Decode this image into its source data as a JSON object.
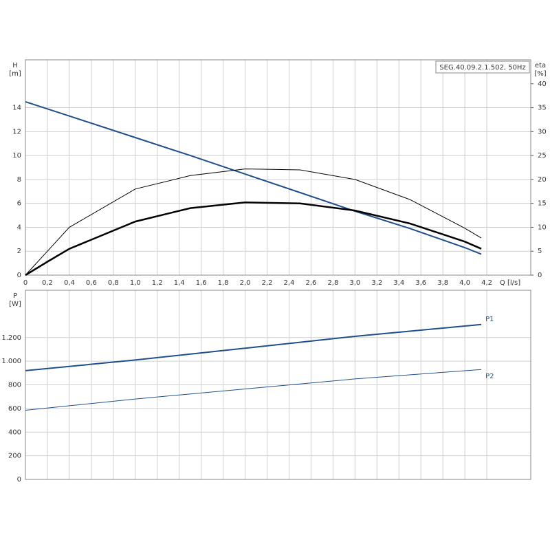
{
  "chart_data": [
    {
      "type": "line",
      "title": "SEG.40.09.2.1.502, 50Hz",
      "x_label": "Q [l/s]",
      "y_label": "H",
      "y_unit": "[m]",
      "y2_label": "eta",
      "y2_unit": "[%]",
      "x": [
        0,
        0.2,
        0.4,
        1.0,
        1.5,
        2.0,
        2.5,
        3.0,
        3.5,
        4.0,
        4.15
      ],
      "xlim": [
        0,
        4.6
      ],
      "xticks": [
        0,
        {
          "value": 0.2,
          "label": "0,2"
        },
        {
          "value": 0.4,
          "label": "0,4"
        },
        {
          "value": 0.6,
          "label": "0,6"
        },
        {
          "value": 0.8,
          "label": "0,8"
        },
        {
          "value": 1.0,
          "label": "1,0"
        },
        {
          "value": 1.2,
          "label": "1,2"
        },
        {
          "value": 1.4,
          "label": "1,4"
        },
        {
          "value": 1.6,
          "label": "1,6"
        },
        {
          "value": 1.8,
          "label": "1,8"
        },
        {
          "value": 2.0,
          "label": "2,0"
        },
        {
          "value": 2.2,
          "label": "2,2"
        },
        {
          "value": 2.4,
          "label": "2,4"
        },
        {
          "value": 2.6,
          "label": "2,6"
        },
        {
          "value": 2.8,
          "label": "2,8"
        },
        {
          "value": 3.0,
          "label": "3,0"
        },
        {
          "value": 3.2,
          "label": "3,2"
        },
        {
          "value": 3.4,
          "label": "3,4"
        },
        {
          "value": 3.6,
          "label": "3,6"
        },
        {
          "value": 3.8,
          "label": "3,8"
        },
        {
          "value": 4.0,
          "label": "4,0"
        },
        {
          "value": 4.2,
          "label": "4,2"
        }
      ],
      "ylim": [
        0,
        18
      ],
      "yticks": [
        0,
        2,
        4,
        6,
        8,
        10,
        12,
        14
      ],
      "y2lim": [
        0,
        45
      ],
      "y2ticks": [
        0,
        5,
        10,
        15,
        20,
        25,
        30,
        35,
        40
      ],
      "grid": true,
      "series": [
        {
          "color": "#1f4e8c",
          "width": 2,
          "values": [
            14.5,
            13.9,
            13.3,
            11.5,
            10.0,
            8.45,
            6.9,
            5.35,
            3.9,
            2.3,
            1.75
          ]
        },
        {
          "color": "#000000",
          "width": 1,
          "axis": "y2",
          "values": [
            0,
            5,
            10,
            18,
            20.8,
            22.2,
            22,
            20,
            15.8,
            9.8,
            7.75
          ]
        },
        {
          "color": "#000000",
          "width": 2.5,
          "axis": "y2",
          "values": [
            0,
            2.8,
            5.5,
            11.2,
            14,
            15.2,
            15,
            13.5,
            10.8,
            7,
            5.5
          ]
        }
      ]
    },
    {
      "type": "line",
      "y_label": "P",
      "y_unit": "[W]",
      "x": [
        0,
        1.0,
        2.0,
        3.0,
        4.15
      ],
      "xlim": [
        0,
        4.6
      ],
      "ylim": [
        0,
        1600
      ],
      "yticks": [
        0,
        200,
        400,
        600,
        800,
        {
          "value": 1000,
          "label": "1.000"
        },
        {
          "value": 1200,
          "label": "1.200"
        }
      ],
      "grid": true,
      "series": [
        {
          "name": "P1",
          "color": "#1f4e8c",
          "width": 2,
          "values": [
            920,
            1010,
            1110,
            1210,
            1310
          ]
        },
        {
          "name": "P2",
          "color": "#1f4e8c",
          "width": 1,
          "values": [
            585,
            680,
            765,
            850,
            930
          ]
        }
      ]
    }
  ]
}
